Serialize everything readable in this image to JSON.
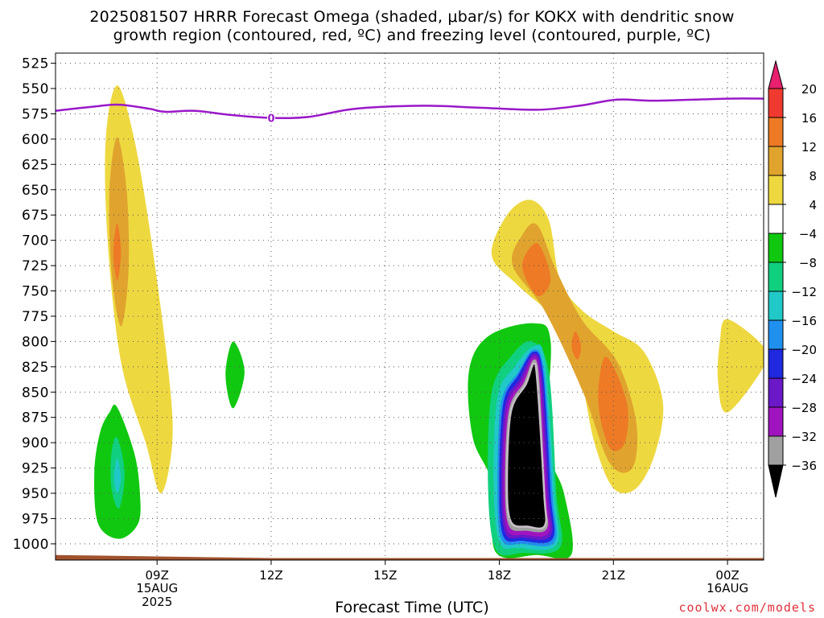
{
  "title_line1": "2025081507 HRRR Forecast Omega (shaded, μbar/s) for KOKX with dendritic snow",
  "title_line2": "growth region (contoured, red, ºC) and freezing level (contoured, purple, ºC)",
  "x_axis_title": "Forecast Time (UTC)",
  "credit": "coolwx.com/models",
  "chart_data": {
    "type": "heatmap",
    "x_range_hours": [
      6.33,
      24.95
    ],
    "y_range_hpa": [
      515,
      1016
    ],
    "y_ticks": [
      525,
      550,
      575,
      600,
      625,
      650,
      675,
      700,
      725,
      750,
      775,
      800,
      825,
      850,
      875,
      900,
      925,
      950,
      975,
      1000
    ],
    "x_ticks": [
      {
        "hour": 9,
        "label": "09Z",
        "sub1": "15AUG",
        "sub2": "2025"
      },
      {
        "hour": 12,
        "label": "12Z",
        "sub1": "",
        "sub2": ""
      },
      {
        "hour": 15,
        "label": "15Z",
        "sub1": "",
        "sub2": ""
      },
      {
        "hour": 18,
        "label": "18Z",
        "sub1": "",
        "sub2": ""
      },
      {
        "hour": 21,
        "label": "21Z",
        "sub1": "",
        "sub2": ""
      },
      {
        "hour": 24,
        "label": "00Z",
        "sub1": "16AUG",
        "sub2": ""
      }
    ],
    "grid": true,
    "colorbar": {
      "labels": [
        "20",
        "16",
        "12",
        "8",
        "4",
        "−4",
        "−8",
        "−12",
        "−16",
        "−20",
        "−24",
        "−28",
        "−32",
        "−36"
      ],
      "colors": [
        "#e8206e",
        "#f03a30",
        "#ee7a25",
        "#e0a42e",
        "#eed840",
        "#ffffff",
        "#10c810",
        "#10d080",
        "#20c8c8",
        "#2090ee",
        "#2028e0",
        "#6a18c8",
        "#a014c0",
        "#a0a0a0",
        "#000000"
      ]
    },
    "freezing_level": {
      "color": "#9a18c8",
      "label": "0",
      "points": [
        [
          6.33,
          572
        ],
        [
          7.3,
          568
        ],
        [
          8.0,
          566
        ],
        [
          8.8,
          570
        ],
        [
          9.2,
          573
        ],
        [
          10.0,
          572
        ],
        [
          10.9,
          576
        ],
        [
          12.0,
          579
        ],
        [
          13.0,
          578
        ],
        [
          14.2,
          570
        ],
        [
          16.0,
          567
        ],
        [
          17.5,
          569
        ],
        [
          19.0,
          571
        ],
        [
          20.1,
          567
        ],
        [
          21.1,
          561
        ],
        [
          22.1,
          562
        ],
        [
          24.0,
          560
        ],
        [
          24.95,
          560
        ]
      ],
      "label_at": [
        12.0,
        579
      ]
    },
    "ground": {
      "color": "#a0522d",
      "points": [
        [
          6.33,
          1011
        ],
        [
          12.0,
          1014
        ],
        [
          18.0,
          1014
        ],
        [
          24.95,
          1014
        ]
      ]
    },
    "regions": [
      {
        "name": "ascent-08z-4-8",
        "level": 4,
        "points": [
          [
            7.95,
            547
          ],
          [
            8.4,
            600
          ],
          [
            8.85,
            700
          ],
          [
            9.3,
            830
          ],
          [
            9.4,
            900
          ],
          [
            9.1,
            950
          ],
          [
            8.7,
            900
          ],
          [
            8.05,
            820
          ],
          [
            7.7,
            700
          ],
          [
            7.65,
            600
          ]
        ]
      },
      {
        "name": "ascent-08z-8-12",
        "level": 8,
        "points": [
          [
            7.95,
            598
          ],
          [
            8.2,
            650
          ],
          [
            8.25,
            730
          ],
          [
            8.05,
            785
          ],
          [
            7.8,
            730
          ],
          [
            7.75,
            650
          ]
        ]
      },
      {
        "name": "ascent-08z-12-16",
        "level": 12,
        "points": [
          [
            7.95,
            683
          ],
          [
            8.05,
            712
          ],
          [
            7.95,
            740
          ],
          [
            7.85,
            712
          ]
        ]
      },
      {
        "name": "descent-08z-4-8",
        "level": -4,
        "points": [
          [
            7.95,
            865
          ],
          [
            8.4,
            910
          ],
          [
            8.55,
            950
          ],
          [
            8.5,
            980
          ],
          [
            8.0,
            995
          ],
          [
            7.45,
            980
          ],
          [
            7.35,
            930
          ],
          [
            7.5,
            890
          ],
          [
            7.75,
            870
          ]
        ]
      },
      {
        "name": "descent-08z-8-12",
        "level": -8,
        "points": [
          [
            7.95,
            895
          ],
          [
            8.15,
            930
          ],
          [
            8.0,
            965
          ],
          [
            7.8,
            945
          ],
          [
            7.8,
            910
          ]
        ]
      },
      {
        "name": "descent-08z-12-16",
        "level": -12,
        "points": [
          [
            7.95,
            915
          ],
          [
            8.05,
            935
          ],
          [
            7.95,
            950
          ],
          [
            7.87,
            935
          ]
        ]
      },
      {
        "name": "descent-11z-4-8",
        "level": -4,
        "points": [
          [
            11.0,
            800
          ],
          [
            11.3,
            830
          ],
          [
            11.0,
            866
          ],
          [
            10.8,
            833
          ]
        ]
      },
      {
        "name": "ascent-19z-4-8",
        "level": 4,
        "points": [
          [
            18.8,
            660
          ],
          [
            19.3,
            680
          ],
          [
            19.6,
            740
          ],
          [
            20.2,
            770
          ],
          [
            21.0,
            790
          ],
          [
            21.8,
            810
          ],
          [
            22.3,
            860
          ],
          [
            22.1,
            910
          ],
          [
            21.6,
            945
          ],
          [
            21.0,
            945
          ],
          [
            20.5,
            900
          ],
          [
            20.1,
            830
          ],
          [
            19.5,
            780
          ],
          [
            18.5,
            745
          ],
          [
            17.8,
            715
          ],
          [
            18.2,
            675
          ]
        ]
      },
      {
        "name": "ascent-19z-8-12",
        "level": 8,
        "points": [
          [
            19.0,
            685
          ],
          [
            19.5,
            730
          ],
          [
            20.2,
            780
          ],
          [
            21.1,
            820
          ],
          [
            21.6,
            880
          ],
          [
            21.5,
            925
          ],
          [
            20.9,
            920
          ],
          [
            20.2,
            850
          ],
          [
            19.2,
            770
          ],
          [
            18.35,
            725
          ],
          [
            18.6,
            695
          ]
        ]
      },
      {
        "name": "ascent-19z-12-16",
        "level": 12,
        "points": [
          [
            19.0,
            703
          ],
          [
            19.35,
            738
          ],
          [
            19.0,
            755
          ],
          [
            18.6,
            725
          ]
        ]
      },
      {
        "name": "ascent-21z-12-16",
        "level": 12,
        "points": [
          [
            20.8,
            815
          ],
          [
            21.35,
            860
          ],
          [
            21.3,
            900
          ],
          [
            20.9,
            905
          ],
          [
            20.6,
            860
          ]
        ]
      },
      {
        "name": "ascent-20z-12-16",
        "level": 12,
        "points": [
          [
            20.0,
            790
          ],
          [
            20.15,
            805
          ],
          [
            20.05,
            818
          ],
          [
            19.9,
            805
          ]
        ]
      },
      {
        "name": "ascent-00z-4-8",
        "level": 4,
        "points": [
          [
            24.0,
            778
          ],
          [
            24.95,
            805
          ],
          [
            24.95,
            825
          ],
          [
            24.0,
            870
          ],
          [
            23.75,
            840
          ],
          [
            23.8,
            800
          ]
        ]
      },
      {
        "name": "descent-19z-4-8",
        "level": -4,
        "points": [
          [
            18.9,
            782
          ],
          [
            19.35,
            800
          ],
          [
            19.25,
            900
          ],
          [
            19.7,
            950
          ],
          [
            19.9,
            1010
          ],
          [
            19.0,
            1011
          ],
          [
            17.9,
            1008
          ],
          [
            17.8,
            940
          ],
          [
            17.3,
            895
          ],
          [
            17.2,
            830
          ],
          [
            17.7,
            795
          ]
        ]
      },
      {
        "name": "descent-19z-8-12",
        "level": -8,
        "points": [
          [
            18.85,
            800
          ],
          [
            19.3,
            830
          ],
          [
            19.5,
            950
          ],
          [
            19.6,
            1003
          ],
          [
            18.6,
            1009
          ],
          [
            17.9,
            1005
          ],
          [
            17.7,
            940
          ],
          [
            17.8,
            850
          ],
          [
            18.3,
            815
          ]
        ]
      },
      {
        "name": "descent-19z-12-16",
        "level": -12,
        "points": [
          [
            18.9,
            805
          ],
          [
            19.2,
            820
          ],
          [
            19.45,
            950
          ],
          [
            19.5,
            1001
          ],
          [
            18.5,
            1004
          ],
          [
            18.0,
            998
          ],
          [
            17.85,
            940
          ],
          [
            17.95,
            855
          ],
          [
            18.4,
            825
          ]
        ]
      },
      {
        "name": "descent-19z-16-20",
        "level": -16,
        "points": [
          [
            18.9,
            808
          ],
          [
            19.18,
            830
          ],
          [
            19.4,
            950
          ],
          [
            19.45,
            998
          ],
          [
            18.6,
            1000
          ],
          [
            18.05,
            995
          ],
          [
            17.95,
            940
          ],
          [
            18.05,
            860
          ],
          [
            18.5,
            830
          ]
        ]
      },
      {
        "name": "descent-19z-20-24",
        "level": -20,
        "points": [
          [
            18.9,
            810
          ],
          [
            19.15,
            832
          ],
          [
            19.35,
            950
          ],
          [
            19.4,
            995
          ],
          [
            18.6,
            997
          ],
          [
            18.1,
            992
          ],
          [
            18.0,
            940
          ],
          [
            18.1,
            862
          ],
          [
            18.5,
            833
          ]
        ]
      },
      {
        "name": "descent-19z-24-28",
        "level": -24,
        "points": [
          [
            18.9,
            812
          ],
          [
            19.12,
            834
          ],
          [
            19.3,
            950
          ],
          [
            19.35,
            992
          ],
          [
            18.6,
            994
          ],
          [
            18.15,
            989
          ],
          [
            18.05,
            940
          ],
          [
            18.15,
            864
          ],
          [
            18.55,
            836
          ]
        ]
      },
      {
        "name": "descent-19z-28-32",
        "level": -28,
        "points": [
          [
            18.9,
            815
          ],
          [
            19.08,
            836
          ],
          [
            19.25,
            950
          ],
          [
            19.3,
            989
          ],
          [
            18.65,
            991
          ],
          [
            18.2,
            986
          ],
          [
            18.1,
            940
          ],
          [
            18.2,
            866
          ],
          [
            18.6,
            838
          ]
        ]
      },
      {
        "name": "descent-19z-32-36",
        "level": -32,
        "points": [
          [
            18.9,
            818
          ],
          [
            19.05,
            838
          ],
          [
            19.2,
            950
          ],
          [
            19.25,
            985
          ],
          [
            18.7,
            987
          ],
          [
            18.25,
            982
          ],
          [
            18.15,
            940
          ],
          [
            18.25,
            868
          ],
          [
            18.65,
            840
          ]
        ]
      },
      {
        "name": "descent-19z-core",
        "level": -36,
        "points": [
          [
            18.9,
            822
          ],
          [
            19.0,
            840
          ],
          [
            19.18,
            950
          ],
          [
            19.2,
            982
          ],
          [
            18.75,
            983
          ],
          [
            18.3,
            978
          ],
          [
            18.2,
            940
          ],
          [
            18.3,
            870
          ],
          [
            18.7,
            842
          ]
        ]
      }
    ]
  }
}
